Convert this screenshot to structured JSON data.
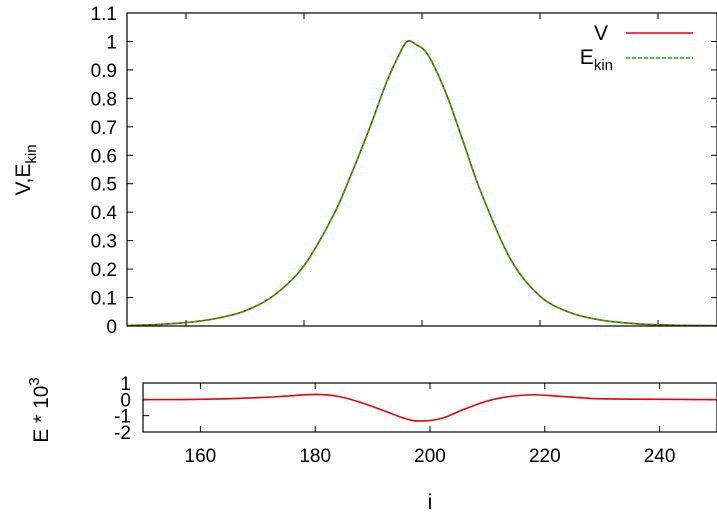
{
  "chart_data": [
    {
      "type": "line",
      "xlim": [
        150,
        250
      ],
      "ylim": [
        0,
        1.1
      ],
      "yticks": [
        "0",
        "0.1",
        "0.2",
        "0.3",
        "0.4",
        "0.5",
        "0.6",
        "0.7",
        "0.8",
        "0.9",
        "1",
        "1.1"
      ],
      "ylabel": {
        "base": "V,E",
        "sub": "kin"
      },
      "xlabel": "",
      "grid": false,
      "legend_position": "top-right",
      "series": [
        {
          "name": "V",
          "name_sub": "",
          "color": "#e8000b",
          "dash": "solid",
          "x": [
            150,
            155,
            160,
            165,
            170,
            175,
            180,
            185,
            188,
            191,
            194,
            196,
            197.5,
            199,
            201,
            204,
            207,
            210,
            215,
            220,
            225,
            230,
            235,
            240,
            245,
            250
          ],
          "y": [
            0.002,
            0.005,
            0.012,
            0.026,
            0.053,
            0.109,
            0.212,
            0.39,
            0.533,
            0.689,
            0.857,
            0.949,
            1.0,
            0.989,
            0.953,
            0.822,
            0.647,
            0.47,
            0.235,
            0.105,
            0.048,
            0.022,
            0.01,
            0.004,
            0.002,
            0.001
          ]
        },
        {
          "name": "E",
          "name_sub": "kin",
          "color": "#00c000",
          "dash": "dashed",
          "x": [
            150,
            155,
            160,
            165,
            170,
            175,
            180,
            185,
            188,
            191,
            194,
            196,
            197.5,
            199,
            201,
            204,
            207,
            210,
            215,
            220,
            225,
            230,
            235,
            240,
            245,
            250
          ],
          "y": [
            0.002,
            0.005,
            0.012,
            0.026,
            0.053,
            0.109,
            0.212,
            0.39,
            0.533,
            0.689,
            0.857,
            0.949,
            1.0,
            0.989,
            0.953,
            0.822,
            0.647,
            0.47,
            0.235,
            0.105,
            0.048,
            0.022,
            0.01,
            0.004,
            0.002,
            0.001
          ]
        }
      ]
    },
    {
      "type": "line",
      "xlim": [
        150,
        250
      ],
      "ylim": [
        -2,
        1
      ],
      "xticks": [
        "160",
        "180",
        "200",
        "220",
        "240"
      ],
      "yticks": [
        "-2",
        "-1",
        "0",
        "1"
      ],
      "ylabel": {
        "base": "E * 10",
        "sup": "3"
      },
      "xlabel": "i",
      "grid": false,
      "series": [
        {
          "color": "#e8000b",
          "x": [
            150,
            160,
            170,
            175,
            180,
            184,
            188,
            192,
            195,
            197,
            199,
            201,
            203,
            206,
            210,
            214,
            218,
            222,
            226,
            230,
            240,
            250
          ],
          "y": [
            -0.02,
            0.0,
            0.1,
            0.2,
            0.3,
            0.18,
            -0.2,
            -0.7,
            -1.1,
            -1.3,
            -1.32,
            -1.25,
            -1.05,
            -0.6,
            -0.1,
            0.18,
            0.28,
            0.2,
            0.1,
            0.03,
            0.0,
            -0.02
          ]
        }
      ]
    }
  ]
}
